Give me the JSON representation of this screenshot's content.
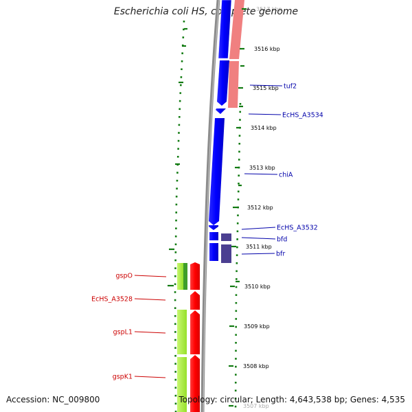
{
  "title": "Escherichia coli HS, complete genome",
  "accession": "Accession: NC_009800",
  "summary": "Topology: circular; Length: 4,643,538 bp; Genes: 4,535",
  "colors": {
    "forward_cds": "#ff0000",
    "forward_cds_light": "#a6f035",
    "reverse_cds": "#0000ff",
    "reverse_cds_pink": "#f08080",
    "reverse_cds_purple": "#4b3f91",
    "backbone": "#888888",
    "gc_dots": "#117a11",
    "forward_labels": "#cc0000",
    "reverse_labels": "#0000aa"
  },
  "ruler": {
    "ticks": [
      {
        "label": "3517 kbp",
        "kbp": 3517
      },
      {
        "label": "3516 kbp",
        "kbp": 3516
      },
      {
        "label": "3515 kbp",
        "kbp": 3515
      },
      {
        "label": "3514 kbp",
        "kbp": 3514
      },
      {
        "label": "3513 kbp",
        "kbp": 3513
      },
      {
        "label": "3512 kbp",
        "kbp": 3512
      },
      {
        "label": "3511 kbp",
        "kbp": 3511
      },
      {
        "label": "3510 kbp",
        "kbp": 3510
      },
      {
        "label": "3509 kbp",
        "kbp": 3509
      },
      {
        "label": "3508 kbp",
        "kbp": 3508
      },
      {
        "label": "3507 kbp",
        "kbp": 3507
      }
    ]
  },
  "reverse_genes": [
    {
      "name": "tuf2"
    },
    {
      "name": "EcHS_A3534"
    },
    {
      "name": "chiA"
    },
    {
      "name": "EcHS_A3532"
    },
    {
      "name": "bfd"
    },
    {
      "name": "bfr"
    }
  ],
  "forward_genes": [
    {
      "name": "gspO"
    },
    {
      "name": "EcHS_A3528"
    },
    {
      "name": "gspL1"
    },
    {
      "name": "gspK1"
    }
  ]
}
